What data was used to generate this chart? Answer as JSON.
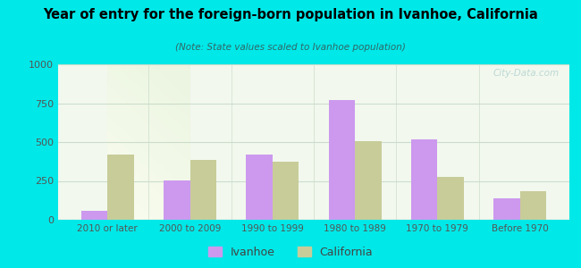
{
  "title": "Year of entry for the foreign-born population in Ivanhoe, California",
  "subtitle": "(Note: State values scaled to Ivanhoe population)",
  "categories": [
    "2010 or later",
    "2000 to 2009",
    "1990 to 1999",
    "1980 to 1989",
    "1970 to 1979",
    "Before 1970"
  ],
  "ivanhoe_values": [
    60,
    255,
    420,
    770,
    520,
    140
  ],
  "california_values": [
    420,
    385,
    375,
    505,
    275,
    185
  ],
  "ivanhoe_color": "#cc99ee",
  "california_color": "#c8cc99",
  "background_outer": "#00e8e8",
  "ylim": [
    0,
    1000
  ],
  "yticks": [
    0,
    250,
    500,
    750,
    1000
  ],
  "bar_width": 0.32,
  "legend_ivanhoe": "Ivanhoe",
  "legend_california": "California",
  "watermark": "City-Data.com",
  "title_color": "#000000",
  "subtitle_color": "#336666",
  "ytick_color": "#555555",
  "xtick_color": "#555555"
}
